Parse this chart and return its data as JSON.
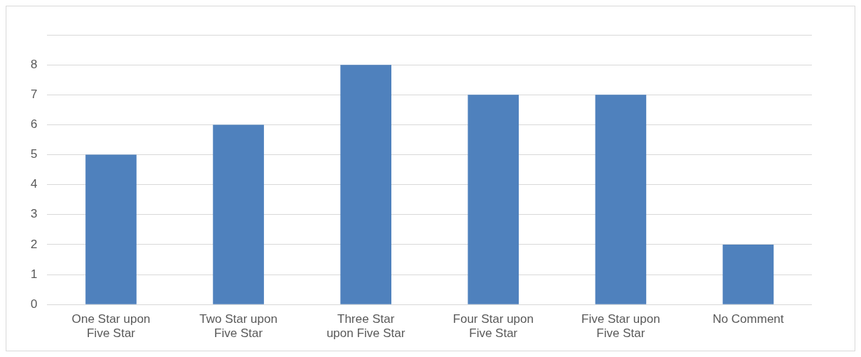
{
  "chart_data": {
    "type": "bar",
    "categories": [
      "One Star upon Five Star",
      "Two Star upon Five Star",
      "Three Star upon Five Star",
      "Four Star upon Five Star",
      "Five Star upon Five Star",
      "No Comment"
    ],
    "values": [
      5,
      6,
      8,
      7,
      7,
      2
    ],
    "color": "#4f81bd",
    "ylim": [
      0,
      9
    ],
    "yticks": [
      0,
      1,
      2,
      3,
      4,
      5,
      6,
      7,
      8,
      {
        "value": 9,
        "label": null
      }
    ],
    "grid": "y",
    "legend": false
  }
}
